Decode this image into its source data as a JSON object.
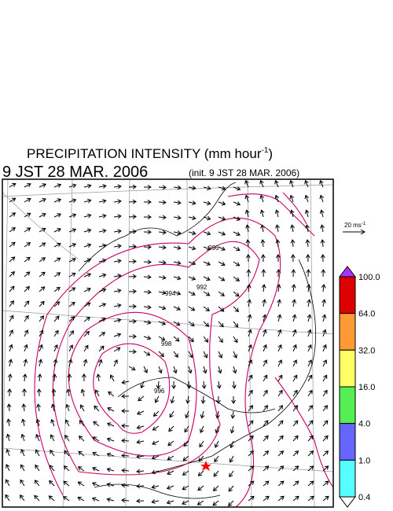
{
  "header": {
    "title": "PRECIPITATION INTENSITY (mm hour",
    "title_exponent": "-1",
    "title_close": ")",
    "valid_time": "9 JST 28 MAR. 2006",
    "init_time": "(init. 9 JST 28 MAR. 2006)"
  },
  "wind_scale": {
    "label": "20 ms",
    "exponent": "-1"
  },
  "colorbar": {
    "labels": [
      "100.0",
      "64.0",
      "32.0",
      "16.0",
      "4.0",
      "1.0",
      "0.4"
    ],
    "colors": [
      "#dd0000",
      "#ff9933",
      "#ffff66",
      "#55ee55",
      "#6666ff",
      "#55ffff"
    ],
    "over_color": "#aa33ff",
    "under_color": "#ffffff"
  },
  "contour_labels": [
    "996",
    "994",
    "992",
    "998",
    "996"
  ]
}
